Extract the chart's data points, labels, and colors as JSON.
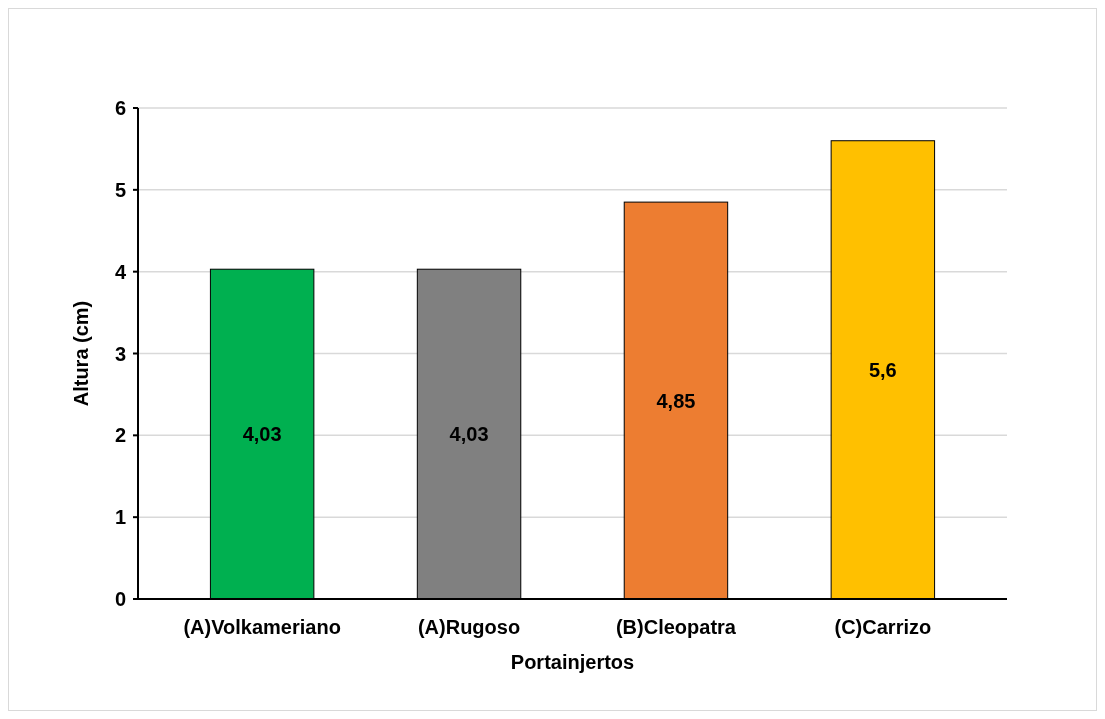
{
  "chart_data": {
    "type": "bar",
    "xlabel": "Portainjertos",
    "ylabel": "Altura (cm)",
    "categories": [
      "(A)Volkameriano",
      "(A)Rugoso",
      "(B)Cleopatra",
      "(C)Carrizo"
    ],
    "values": [
      4.03,
      4.03,
      4.85,
      5.6
    ],
    "colors": [
      "#00b050",
      "#808080",
      "#ed7d31",
      "#ffc000"
    ],
    "value_labels": [
      "4,03",
      "4,03",
      "4,85",
      "5,6"
    ],
    "ylim": [
      0,
      6
    ],
    "yticks": [
      0,
      1,
      2,
      3,
      4,
      5,
      6
    ],
    "grid": "y"
  }
}
